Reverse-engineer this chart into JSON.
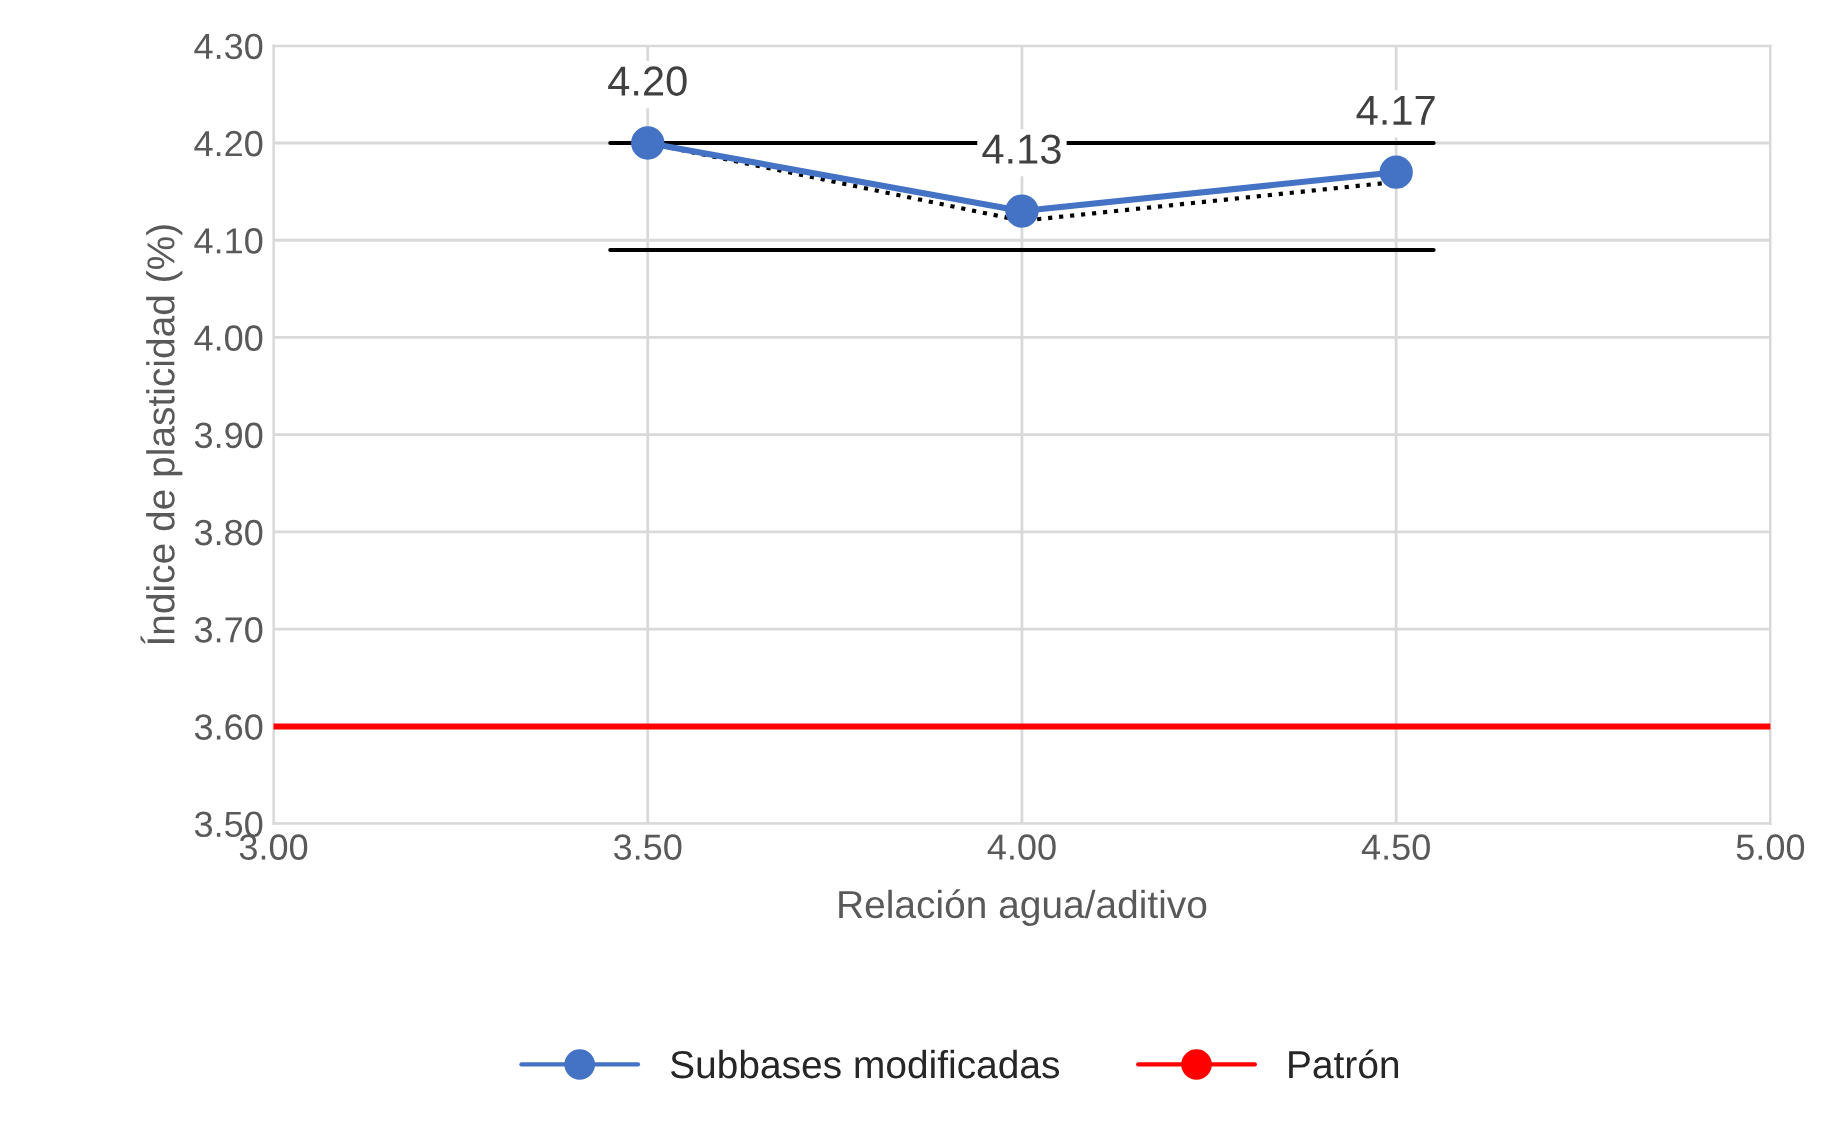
{
  "chart_data": {
    "type": "line",
    "xlabel": "Relación agua/aditivo",
    "ylabel": "Índice de plasticidad (%)",
    "xlim": [
      3.0,
      5.0
    ],
    "xticks": [
      {
        "value": 3.0,
        "label": "3.00"
      },
      {
        "value": 3.5,
        "label": "3.50"
      },
      {
        "value": 4.0,
        "label": "4.00"
      },
      {
        "value": 4.5,
        "label": "4.50"
      },
      {
        "value": 5.0,
        "label": "5.00"
      }
    ],
    "ylim": [
      3.5,
      4.3
    ],
    "yticks": [
      {
        "value": 3.5,
        "label": "3.50"
      },
      {
        "value": 3.6,
        "label": "3.60"
      },
      {
        "value": 3.7,
        "label": "3.70"
      },
      {
        "value": 3.8,
        "label": "3.80"
      },
      {
        "value": 3.9,
        "label": "3.90"
      },
      {
        "value": 4.0,
        "label": "4.00"
      },
      {
        "value": 4.1,
        "label": "4.10"
      },
      {
        "value": 4.2,
        "label": "4.20"
      },
      {
        "value": 4.3,
        "label": "4.30"
      }
    ],
    "grid": true,
    "legend": "bottom",
    "series": [
      {
        "x": [
          3.45,
          4.55
        ],
        "values": [
          4.2,
          4.2
        ],
        "color": "#000000",
        "marker": "none",
        "line_style": "solid"
      },
      {
        "x": [
          3.45,
          4.55
        ],
        "values": [
          4.09,
          4.09
        ],
        "color": "#000000",
        "marker": "none",
        "line_style": "solid"
      },
      {
        "x": [
          3.5,
          4.0,
          4.5
        ],
        "values": [
          4.2,
          4.12,
          4.16
        ],
        "color": "#000000",
        "marker": "none",
        "line_style": "dotted"
      },
      {
        "name": "Subbases modificadas",
        "x": [
          3.5,
          4.0,
          4.5
        ],
        "values": [
          4.2,
          4.13,
          4.17
        ],
        "color": "#4472c4",
        "marker": "circle",
        "line_style": "solid",
        "value_labels": [
          "4.20",
          "4.13",
          "4.17"
        ]
      },
      {
        "name": "Patrón",
        "x": [
          3.0,
          5.0
        ],
        "values": [
          3.6,
          3.6
        ],
        "color": "#ff0000",
        "marker": "none",
        "line_style": "solid"
      }
    ]
  }
}
